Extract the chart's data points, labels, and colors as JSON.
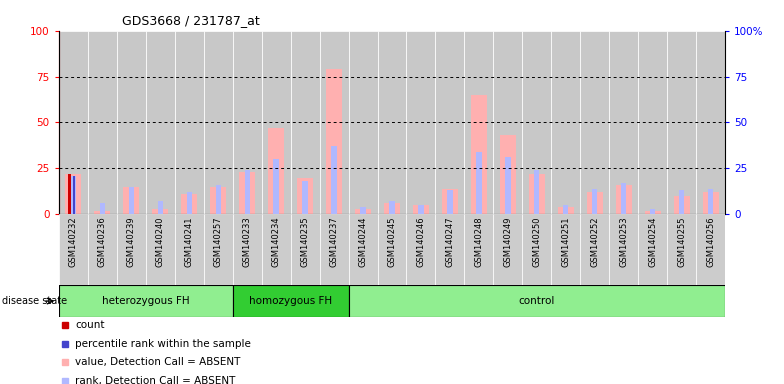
{
  "title": "GDS3668 / 231787_at",
  "samples": [
    "GSM140232",
    "GSM140236",
    "GSM140239",
    "GSM140240",
    "GSM140241",
    "GSM140257",
    "GSM140233",
    "GSM140234",
    "GSM140235",
    "GSM140237",
    "GSM140244",
    "GSM140245",
    "GSM140246",
    "GSM140247",
    "GSM140248",
    "GSM140249",
    "GSM140250",
    "GSM140251",
    "GSM140252",
    "GSM140253",
    "GSM140254",
    "GSM140255",
    "GSM140256"
  ],
  "groups": [
    {
      "label": "heterozygous FH",
      "start": 0,
      "end": 6,
      "color": "#90ee90"
    },
    {
      "label": "homozygous FH",
      "start": 6,
      "end": 10,
      "color": "#32cd32"
    },
    {
      "label": "control",
      "start": 10,
      "end": 23,
      "color": "#90ee90"
    }
  ],
  "value_absent": [
    22,
    2,
    15,
    3,
    11,
    15,
    23,
    47,
    20,
    79,
    3,
    6,
    5,
    14,
    65,
    43,
    22,
    4,
    12,
    16,
    2,
    10,
    12
  ],
  "rank_absent": [
    21,
    6,
    15,
    7,
    12,
    16,
    24,
    30,
    18,
    37,
    4,
    7,
    5,
    13,
    34,
    31,
    24,
    5,
    14,
    17,
    3,
    13,
    14
  ],
  "count_val": [
    22,
    0,
    0,
    0,
    0,
    0,
    0,
    0,
    0,
    0,
    0,
    0,
    0,
    0,
    0,
    0,
    0,
    0,
    0,
    0,
    0,
    0,
    0
  ],
  "rank_val": [
    21,
    0,
    0,
    0,
    0,
    0,
    0,
    0,
    0,
    0,
    0,
    0,
    0,
    0,
    0,
    0,
    0,
    0,
    0,
    0,
    0,
    0,
    0
  ],
  "ylim": [
    0,
    100
  ],
  "yticks": [
    0,
    25,
    50,
    75,
    100
  ],
  "color_count": "#cc0000",
  "color_rank": "#4444cc",
  "color_value_absent": "#ffb0b0",
  "color_rank_absent": "#b0b8ff",
  "disease_state_label": "disease state",
  "legend_items": [
    {
      "color": "#cc0000",
      "label": "count"
    },
    {
      "color": "#4444cc",
      "label": "percentile rank within the sample"
    },
    {
      "color": "#ffb0b0",
      "label": "value, Detection Call = ABSENT"
    },
    {
      "color": "#b0b8ff",
      "label": "rank, Detection Call = ABSENT"
    }
  ],
  "plot_bg": "#c8c8c8",
  "cell_sep_color": "#ffffff",
  "fig_bg": "#ffffff"
}
